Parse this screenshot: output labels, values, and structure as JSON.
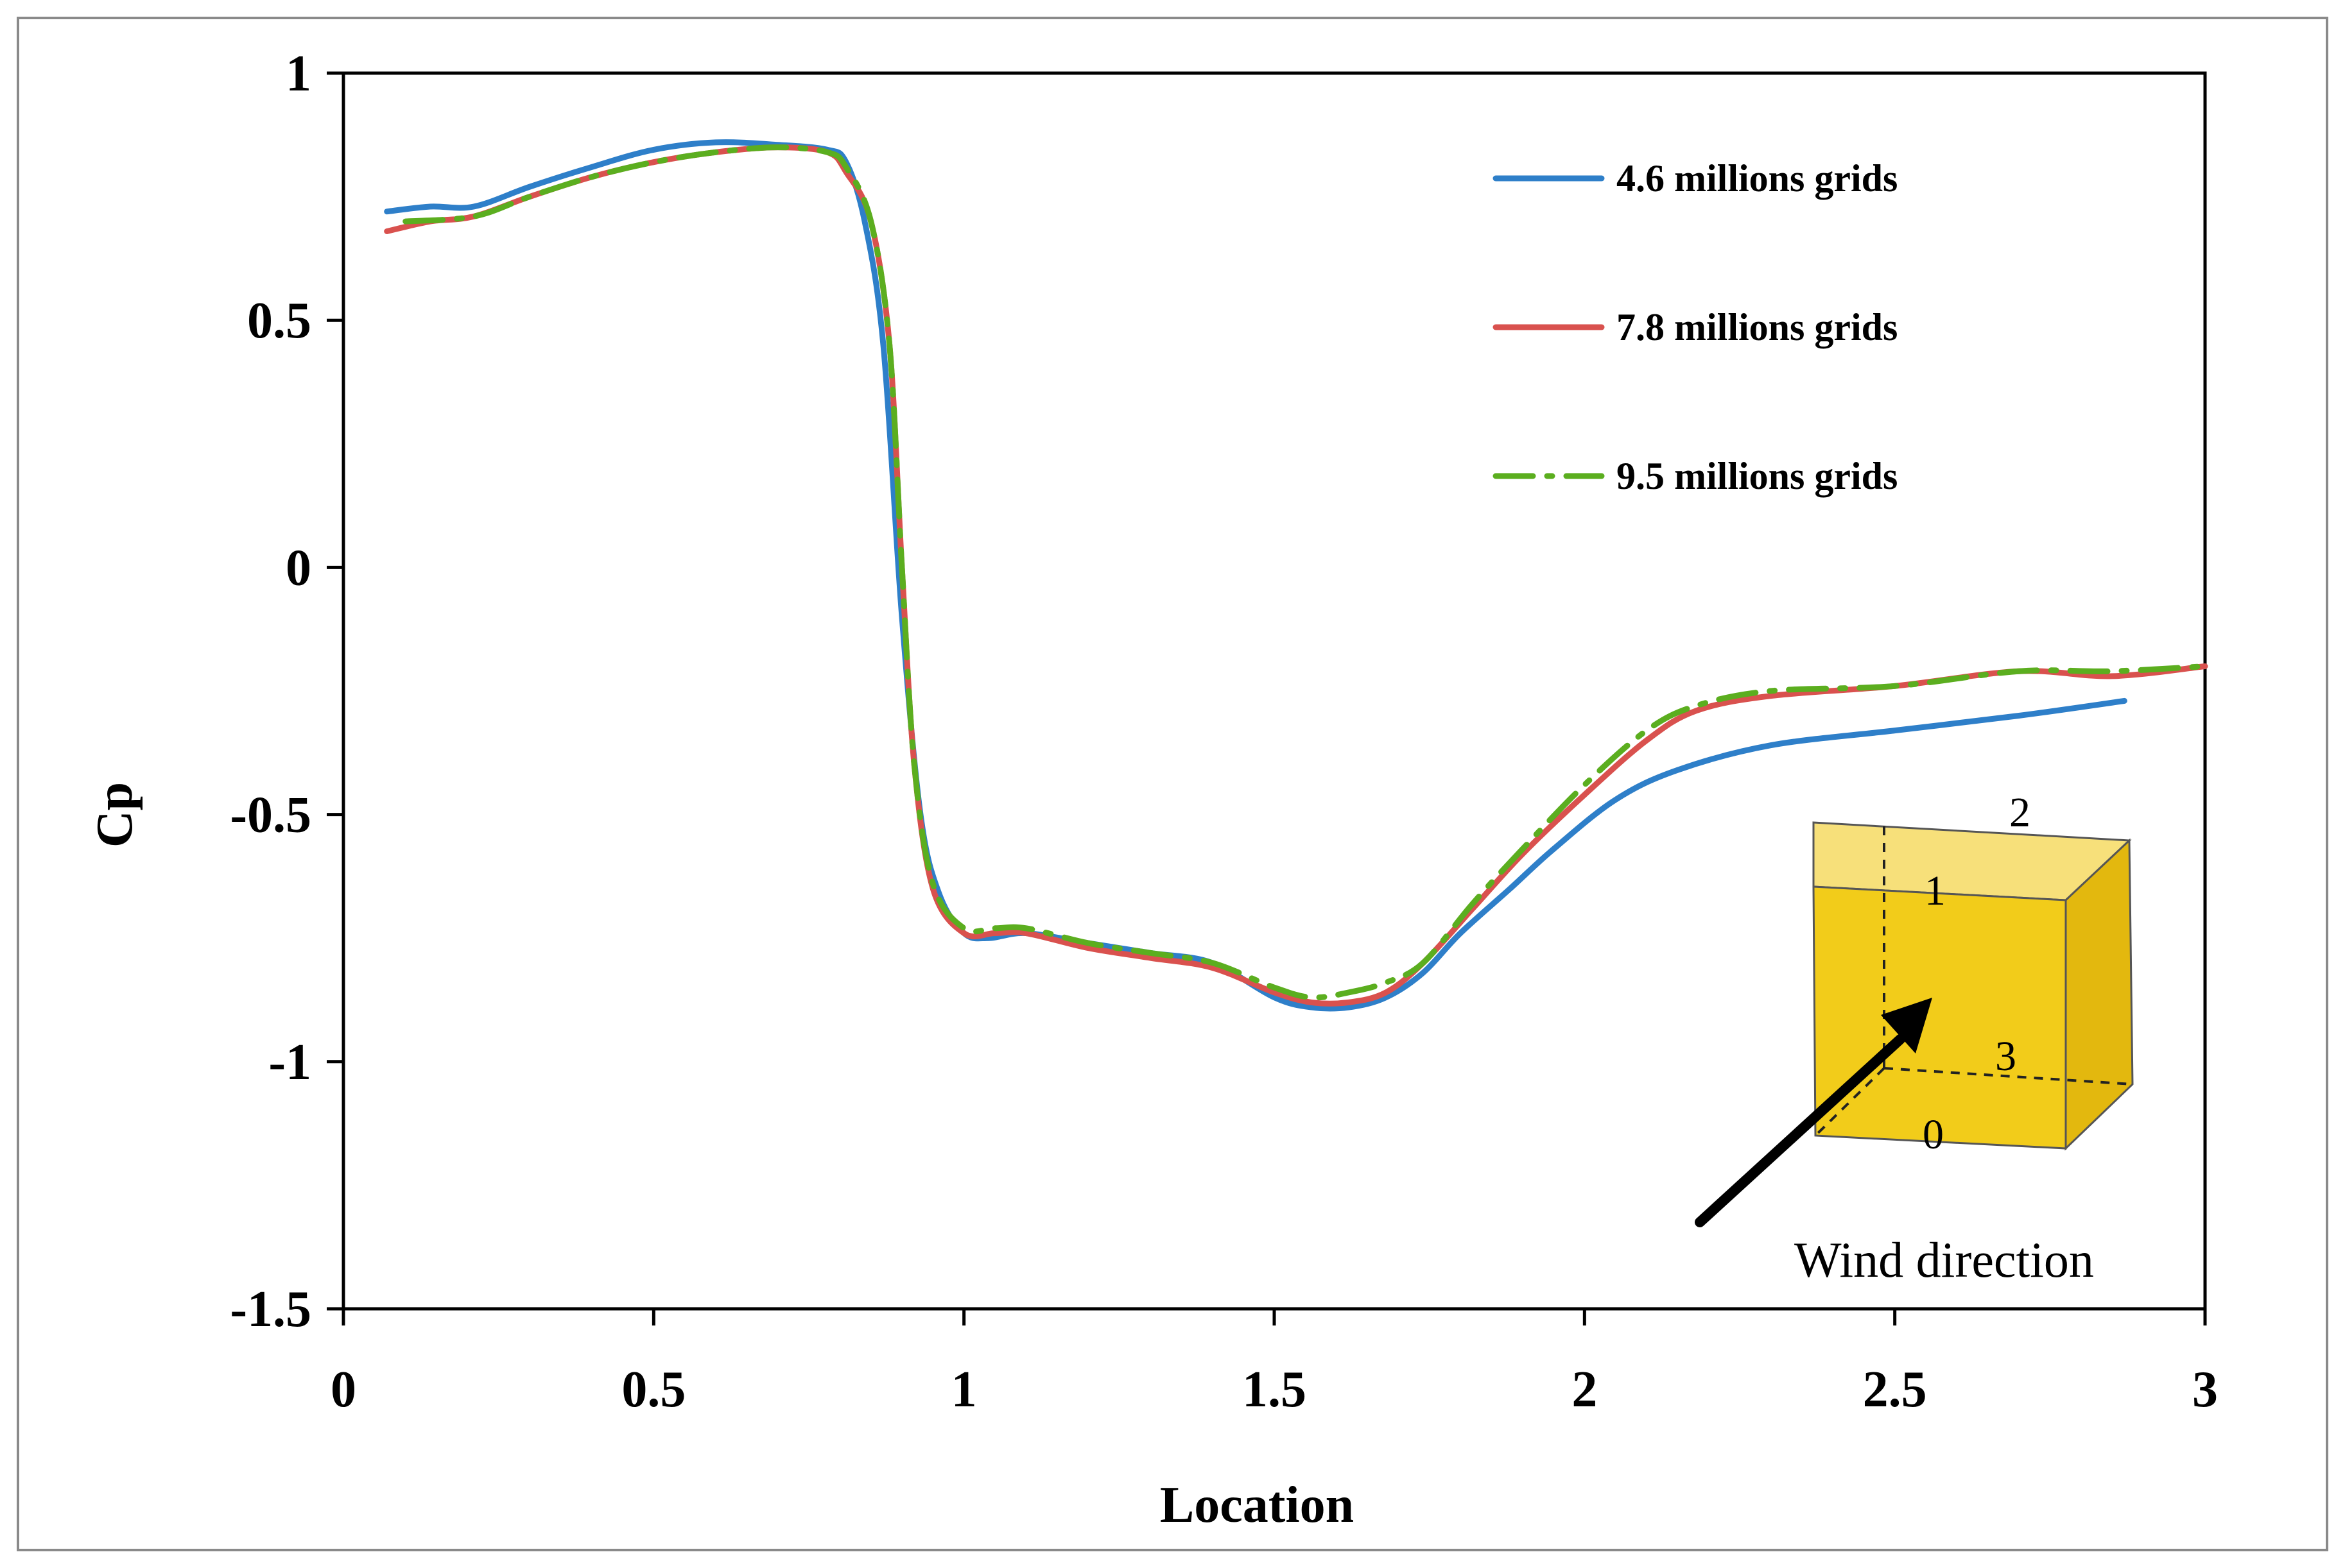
{
  "chart_data": {
    "type": "line",
    "title": "",
    "xlabel": "Location",
    "ylabel": "Cp",
    "xlim": [
      0,
      3
    ],
    "ylim": [
      -1.5,
      1
    ],
    "xticks": [
      0,
      0.5,
      1,
      1.5,
      2,
      2.5,
      3
    ],
    "yticks": [
      1,
      0.5,
      0,
      -0.5,
      -1,
      -1.5
    ],
    "xtick_labels": [
      "0",
      "0.5",
      "1",
      "1.5",
      "2",
      "2.5",
      "3"
    ],
    "ytick_labels": [
      "1",
      "0.5",
      "0",
      "-0.5",
      "-1",
      "-1.5"
    ],
    "grid": false,
    "legend_position": "top-right",
    "series": [
      {
        "name": "4.6 millions grids",
        "color": "#2E7FC9",
        "style": "solid",
        "points": [
          [
            0.07,
            0.72
          ],
          [
            0.14,
            0.73
          ],
          [
            0.21,
            0.73
          ],
          [
            0.3,
            0.77
          ],
          [
            0.4,
            0.81
          ],
          [
            0.5,
            0.845
          ],
          [
            0.6,
            0.86
          ],
          [
            0.7,
            0.855
          ],
          [
            0.78,
            0.845
          ],
          [
            0.81,
            0.82
          ],
          [
            0.84,
            0.7
          ],
          [
            0.87,
            0.45
          ],
          [
            0.9,
            -0.1
          ],
          [
            0.93,
            -0.5
          ],
          [
            0.96,
            -0.66
          ],
          [
            1.0,
            -0.74
          ],
          [
            1.04,
            -0.75
          ],
          [
            1.1,
            -0.74
          ],
          [
            1.2,
            -0.76
          ],
          [
            1.3,
            -0.78
          ],
          [
            1.4,
            -0.8
          ],
          [
            1.5,
            -0.87
          ],
          [
            1.56,
            -0.89
          ],
          [
            1.62,
            -0.89
          ],
          [
            1.68,
            -0.87
          ],
          [
            1.74,
            -0.82
          ],
          [
            1.8,
            -0.74
          ],
          [
            1.88,
            -0.65
          ],
          [
            1.95,
            -0.57
          ],
          [
            2.05,
            -0.47
          ],
          [
            2.15,
            -0.41
          ],
          [
            2.3,
            -0.36
          ],
          [
            2.5,
            -0.33
          ],
          [
            2.7,
            -0.3
          ],
          [
            2.87,
            -0.27
          ]
        ]
      },
      {
        "name": "7.8 millions grids",
        "color": "#D9514E",
        "style": "solid",
        "points": [
          [
            0.07,
            0.68
          ],
          [
            0.14,
            0.7
          ],
          [
            0.21,
            0.71
          ],
          [
            0.3,
            0.75
          ],
          [
            0.4,
            0.79
          ],
          [
            0.5,
            0.82
          ],
          [
            0.6,
            0.84
          ],
          [
            0.7,
            0.85
          ],
          [
            0.78,
            0.84
          ],
          [
            0.81,
            0.8
          ],
          [
            0.85,
            0.7
          ],
          [
            0.88,
            0.45
          ],
          [
            0.9,
            0.0
          ],
          [
            0.92,
            -0.4
          ],
          [
            0.95,
            -0.65
          ],
          [
            1.0,
            -0.74
          ],
          [
            1.05,
            -0.74
          ],
          [
            1.1,
            -0.74
          ],
          [
            1.2,
            -0.77
          ],
          [
            1.3,
            -0.79
          ],
          [
            1.4,
            -0.81
          ],
          [
            1.5,
            -0.86
          ],
          [
            1.56,
            -0.88
          ],
          [
            1.62,
            -0.88
          ],
          [
            1.68,
            -0.86
          ],
          [
            1.74,
            -0.8
          ],
          [
            1.82,
            -0.69
          ],
          [
            1.9,
            -0.58
          ],
          [
            2.0,
            -0.46
          ],
          [
            2.1,
            -0.35
          ],
          [
            2.18,
            -0.29
          ],
          [
            2.3,
            -0.26
          ],
          [
            2.5,
            -0.24
          ],
          [
            2.7,
            -0.21
          ],
          [
            2.85,
            -0.22
          ],
          [
            3.0,
            -0.2
          ]
        ]
      },
      {
        "name": "9.5 millions grids",
        "color": "#5BAE1F",
        "style": "dashdot",
        "points": [
          [
            0.1,
            0.7
          ],
          [
            0.21,
            0.71
          ],
          [
            0.3,
            0.75
          ],
          [
            0.4,
            0.79
          ],
          [
            0.5,
            0.82
          ],
          [
            0.6,
            0.84
          ],
          [
            0.7,
            0.85
          ],
          [
            0.78,
            0.84
          ],
          [
            0.81,
            0.81
          ],
          [
            0.85,
            0.7
          ],
          [
            0.88,
            0.45
          ],
          [
            0.9,
            0.0
          ],
          [
            0.92,
            -0.4
          ],
          [
            0.95,
            -0.64
          ],
          [
            1.0,
            -0.73
          ],
          [
            1.05,
            -0.73
          ],
          [
            1.1,
            -0.73
          ],
          [
            1.2,
            -0.76
          ],
          [
            1.3,
            -0.78
          ],
          [
            1.4,
            -0.8
          ],
          [
            1.5,
            -0.85
          ],
          [
            1.56,
            -0.87
          ],
          [
            1.62,
            -0.86
          ],
          [
            1.68,
            -0.84
          ],
          [
            1.74,
            -0.8
          ],
          [
            1.82,
            -0.68
          ],
          [
            1.9,
            -0.57
          ],
          [
            2.0,
            -0.44
          ],
          [
            2.1,
            -0.33
          ],
          [
            2.18,
            -0.28
          ],
          [
            2.3,
            -0.25
          ],
          [
            2.5,
            -0.24
          ],
          [
            2.7,
            -0.21
          ],
          [
            2.85,
            -0.21
          ],
          [
            3.0,
            -0.2
          ]
        ]
      }
    ],
    "annotations": {
      "inset_corner_labels": [
        "2",
        "1",
        "3",
        "0"
      ],
      "inset_caption": "Wind direction"
    }
  }
}
